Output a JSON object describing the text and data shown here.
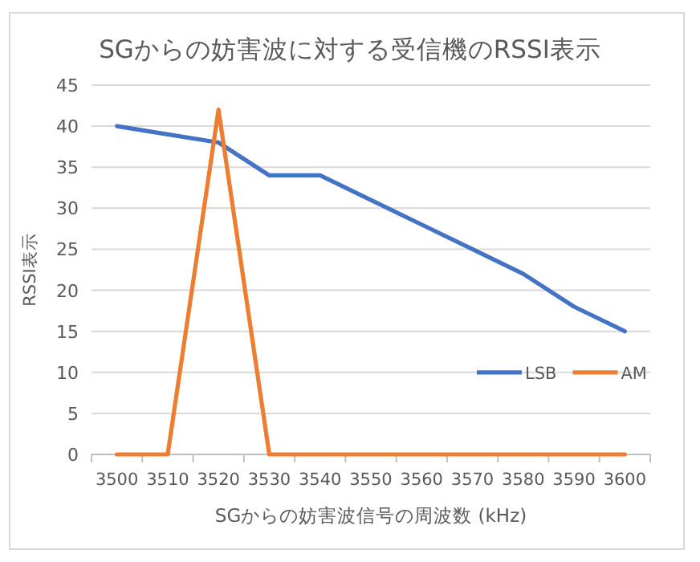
{
  "chart_data": {
    "type": "line",
    "title": "SGからの妨害波に対する受信機のRSSI表示",
    "xlabel": "SGからの妨害波信号の周波数 (kHz)",
    "ylabel": "RSSI表示",
    "categories": [
      "3500",
      "3510",
      "3520",
      "3530",
      "3540",
      "3550",
      "3560",
      "3570",
      "3580",
      "3590",
      "3600"
    ],
    "series": [
      {
        "name": "LSB",
        "color": "#4472c4",
        "values": [
          40,
          39,
          38,
          34,
          34,
          31,
          28,
          25,
          22,
          18,
          15
        ]
      },
      {
        "name": "AM",
        "color": "#ed7d31",
        "values": [
          0,
          0,
          42,
          0,
          0,
          0,
          0,
          0,
          0,
          0,
          0
        ]
      }
    ],
    "ylim": [
      0,
      45
    ],
    "yticks": [
      0,
      5,
      10,
      15,
      20,
      25,
      30,
      35,
      40,
      45
    ],
    "grid": "y",
    "legend": "right",
    "marker": "none",
    "line_style": "solid"
  }
}
